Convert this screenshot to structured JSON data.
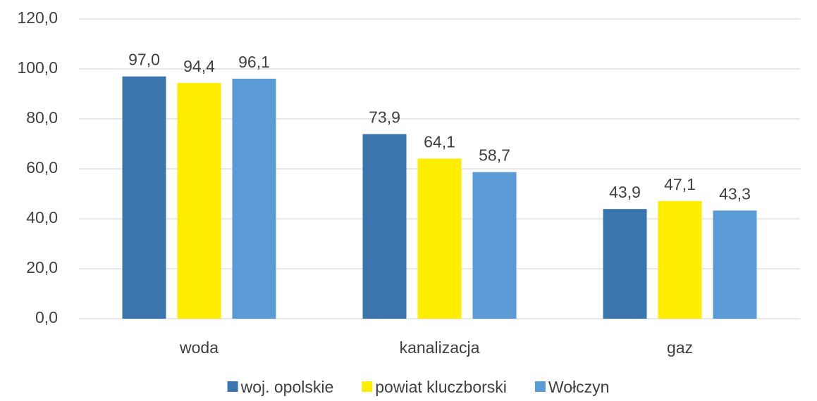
{
  "chart_data": {
    "type": "bar",
    "categories": [
      "woda",
      "kanalizacja",
      "gaz"
    ],
    "series": [
      {
        "name": "woj. opolskie",
        "color": "#3a75ad",
        "values": [
          97.0,
          73.9,
          43.9
        ],
        "value_labels": [
          "97,0",
          "73,9",
          "43,9"
        ]
      },
      {
        "name": "powiat kluczborski",
        "color": "#ffed00",
        "values": [
          94.4,
          64.1,
          47.1
        ],
        "value_labels": [
          "94,4",
          "64,1",
          "47,1"
        ]
      },
      {
        "name": "Wołczyn",
        "color": "#5b9bd5",
        "values": [
          96.1,
          58.7,
          43.3
        ],
        "value_labels": [
          "96,1",
          "58,7",
          "43,3"
        ]
      }
    ],
    "ylim": [
      0,
      120
    ],
    "yticks": [
      {
        "value": 0,
        "label": "0,0"
      },
      {
        "value": 20,
        "label": "20,0"
      },
      {
        "value": 40,
        "label": "40,0"
      },
      {
        "value": 60,
        "label": "60,0"
      },
      {
        "value": 80,
        "label": "80,0"
      },
      {
        "value": 100,
        "label": "100,0"
      },
      {
        "value": 120,
        "label": "120,0"
      }
    ],
    "grid": true,
    "legend": "bottom"
  }
}
